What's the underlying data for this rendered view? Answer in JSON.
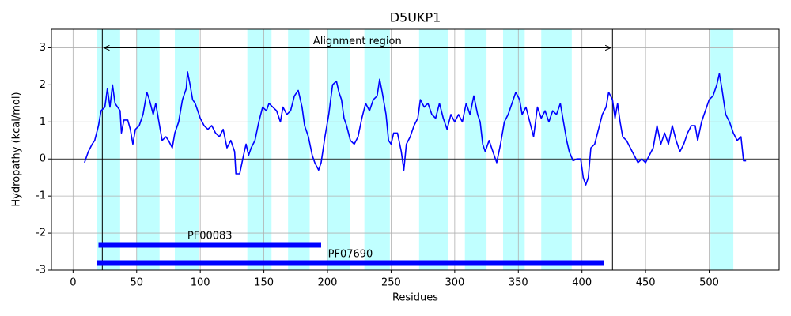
{
  "chart_data": {
    "type": "line",
    "title": "D5UKP1",
    "xlabel": "Residues",
    "ylabel": "Hydropathy (kcal/mol)",
    "color": "#0000ff",
    "highlight_color": "#c0ffff",
    "grid": true,
    "zero_line": true,
    "xlim": [
      -17,
      555
    ],
    "ylim": [
      -3,
      3.5
    ],
    "xticks": [
      0,
      50,
      100,
      150,
      200,
      250,
      300,
      350,
      400,
      450,
      500
    ],
    "yticks": [
      -3,
      -2,
      -1,
      0,
      1,
      2,
      3
    ],
    "highlights": [
      [
        19,
        37
      ],
      [
        50,
        68
      ],
      [
        80,
        99
      ],
      [
        137,
        156
      ],
      [
        169,
        186
      ],
      [
        200,
        218
      ],
      [
        229,
        249
      ],
      [
        272,
        295
      ],
      [
        308,
        325
      ],
      [
        338,
        355
      ],
      [
        368,
        392
      ],
      [
        501,
        519
      ]
    ],
    "alignment_region": {
      "label": "Alignment region",
      "start": 23,
      "end": 424,
      "y": 3
    },
    "domains": [
      {
        "name": "PF00083",
        "start": 20,
        "end": 195,
        "color": "#0000ff"
      },
      {
        "name": "PF07690",
        "start": 19,
        "end": 417,
        "color": "#0000ff"
      }
    ],
    "x": [
      9,
      12,
      15,
      17,
      20,
      22,
      25,
      27,
      29,
      31,
      33,
      35,
      37,
      38,
      40,
      43,
      45,
      47,
      49,
      52,
      55,
      58,
      60,
      63,
      65,
      68,
      70,
      73,
      75,
      78,
      80,
      83,
      86,
      89,
      90,
      92,
      94,
      96,
      98,
      100,
      103,
      106,
      109,
      112,
      115,
      118,
      121,
      124,
      127,
      128,
      131,
      134,
      136,
      138,
      140,
      143,
      146,
      149,
      152,
      154,
      157,
      160,
      163,
      165,
      168,
      171,
      174,
      177,
      180,
      182,
      185,
      188,
      190,
      193,
      195,
      198,
      201,
      204,
      207,
      209,
      211,
      213,
      215,
      218,
      221,
      224,
      227,
      230,
      233,
      236,
      239,
      241,
      243,
      246,
      248,
      250,
      252,
      255,
      258,
      260,
      262,
      265,
      268,
      271,
      273,
      276,
      279,
      282,
      285,
      288,
      291,
      294,
      297,
      300,
      303,
      306,
      309,
      312,
      315,
      318,
      320,
      322,
      324,
      327,
      330,
      333,
      336,
      339,
      342,
      345,
      348,
      351,
      353,
      356,
      359,
      362,
      365,
      368,
      371,
      374,
      377,
      380,
      383,
      386,
      388,
      390,
      393,
      396,
      399,
      401,
      403,
      405,
      407,
      410,
      413,
      416,
      419,
      421,
      424,
      426,
      428,
      430,
      432,
      435,
      438,
      441,
      444,
      447,
      450,
      453,
      456,
      459,
      462,
      465,
      468,
      471,
      474,
      477,
      480,
      483,
      486,
      489,
      491,
      494,
      497,
      500,
      503,
      506,
      508,
      510,
      513,
      516,
      519,
      522,
      525,
      527,
      529
    ],
    "values": [
      -0.1,
      0.2,
      0.4,
      0.5,
      0.9,
      1.3,
      1.4,
      1.9,
      1.4,
      2.0,
      1.5,
      1.4,
      1.3,
      0.7,
      1.05,
      1.05,
      0.8,
      0.4,
      0.8,
      0.9,
      1.2,
      1.8,
      1.6,
      1.2,
      1.5,
      0.9,
      0.5,
      0.6,
      0.5,
      0.3,
      0.7,
      1.0,
      1.6,
      1.9,
      2.35,
      2.0,
      1.6,
      1.5,
      1.3,
      1.1,
      0.9,
      0.8,
      0.9,
      0.7,
      0.6,
      0.8,
      0.3,
      0.5,
      0.2,
      -0.4,
      -0.4,
      0.1,
      0.4,
      0.1,
      0.3,
      0.5,
      1.0,
      1.4,
      1.3,
      1.5,
      1.4,
      1.3,
      1.0,
      1.4,
      1.2,
      1.3,
      1.7,
      1.85,
      1.4,
      0.9,
      0.6,
      0.1,
      -0.1,
      -0.3,
      -0.1,
      0.6,
      1.2,
      2.0,
      2.1,
      1.8,
      1.6,
      1.1,
      0.9,
      0.5,
      0.4,
      0.6,
      1.1,
      1.5,
      1.3,
      1.6,
      1.7,
      2.15,
      1.8,
      1.2,
      0.5,
      0.4,
      0.7,
      0.7,
      0.2,
      -0.3,
      0.4,
      0.6,
      0.9,
      1.1,
      1.6,
      1.4,
      1.5,
      1.2,
      1.1,
      1.5,
      1.1,
      0.8,
      1.2,
      1.0,
      1.2,
      1.0,
      1.5,
      1.2,
      1.7,
      1.2,
      1.0,
      0.4,
      0.2,
      0.5,
      0.2,
      -0.1,
      0.4,
      1.0,
      1.2,
      1.5,
      1.8,
      1.6,
      1.2,
      1.4,
      1.0,
      0.6,
      1.4,
      1.1,
      1.3,
      1.0,
      1.3,
      1.2,
      1.5,
      0.9,
      0.5,
      0.2,
      -0.05,
      0.0,
      0.0,
      -0.5,
      -0.7,
      -0.5,
      0.3,
      0.4,
      0.8,
      1.2,
      1.4,
      1.8,
      1.6,
      1.1,
      1.5,
      1.0,
      0.6,
      0.5,
      0.3,
      0.1,
      -0.1,
      0.0,
      -0.1,
      0.1,
      0.3,
      0.9,
      0.4,
      0.7,
      0.4,
      0.9,
      0.5,
      0.2,
      0.4,
      0.7,
      0.9,
      0.9,
      0.5,
      1.0,
      1.3,
      1.6,
      1.7,
      2.0,
      2.3,
      1.9,
      1.2,
      1.0,
      0.7,
      0.5,
      0.6,
      -0.05,
      -0.05
    ]
  }
}
